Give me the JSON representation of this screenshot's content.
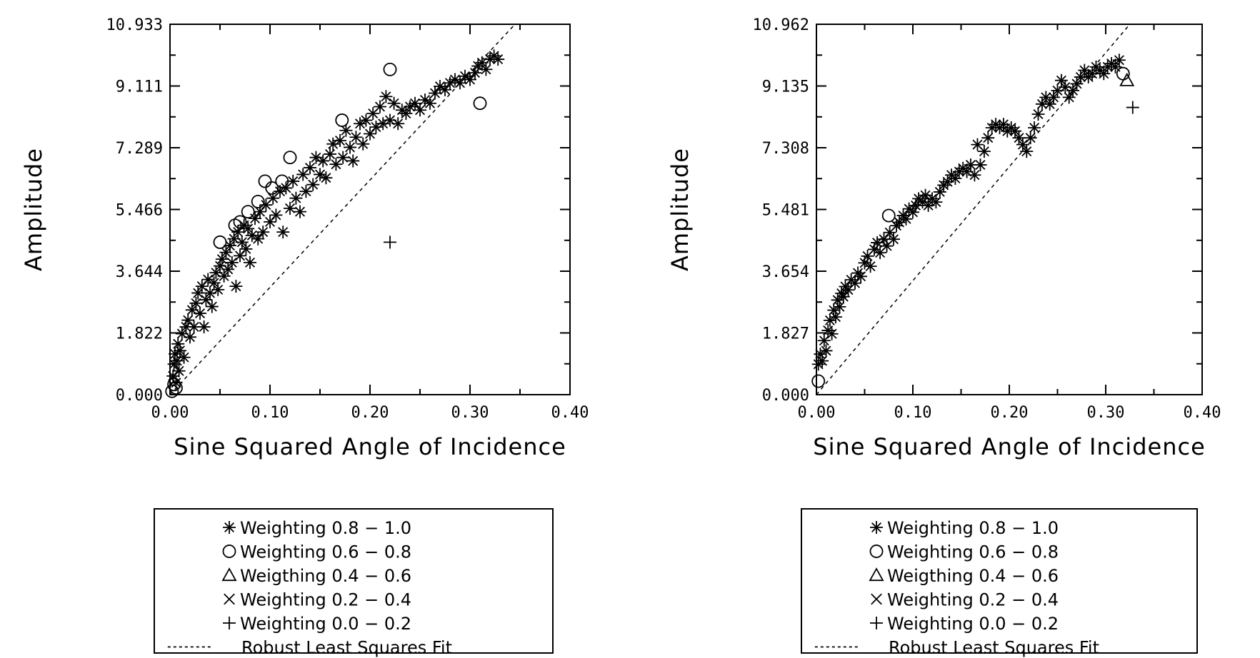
{
  "chart_data": [
    {
      "type": "scatter",
      "xlabel": "Sine Squared Angle of Incidence",
      "ylabel": "Amplitude",
      "xlim": [
        0.0,
        0.4
      ],
      "ylim": [
        0.0,
        10.933
      ],
      "x_ticks": [
        "0.00",
        "0.10",
        "0.20",
        "0.30",
        "0.40"
      ],
      "y_ticks": [
        "0.000",
        "1.822",
        "3.644",
        "5.466",
        "7.289",
        "9.111",
        "10.933"
      ],
      "fit_line": {
        "name": "Robust Least Squares Fit",
        "points": [
          [
            0.0,
            0.0
          ],
          [
            0.345,
            10.933
          ]
        ]
      },
      "series": [
        {
          "name": "Weighting 0.8 - 1.0",
          "marker": "asterisk",
          "points": [
            [
              0.003,
              0.55
            ],
            [
              0.004,
              0.9
            ],
            [
              0.005,
              1.2
            ],
            [
              0.006,
              0.35
            ],
            [
              0.007,
              1.0
            ],
            [
              0.008,
              1.5
            ],
            [
              0.009,
              0.7
            ],
            [
              0.01,
              1.3
            ],
            [
              0.012,
              1.8
            ],
            [
              0.014,
              1.1
            ],
            [
              0.016,
              2.0
            ],
            [
              0.018,
              2.2
            ],
            [
              0.02,
              1.7
            ],
            [
              0.022,
              2.5
            ],
            [
              0.024,
              2.0
            ],
            [
              0.026,
              2.7
            ],
            [
              0.028,
              3.0
            ],
            [
              0.03,
              2.4
            ],
            [
              0.032,
              3.2
            ],
            [
              0.034,
              2.0
            ],
            [
              0.036,
              2.8
            ],
            [
              0.038,
              3.4
            ],
            [
              0.04,
              3.0
            ],
            [
              0.042,
              2.6
            ],
            [
              0.044,
              3.3
            ],
            [
              0.046,
              3.6
            ],
            [
              0.048,
              3.1
            ],
            [
              0.05,
              3.8
            ],
            [
              0.052,
              4.0
            ],
            [
              0.054,
              3.5
            ],
            [
              0.056,
              4.2
            ],
            [
              0.058,
              3.7
            ],
            [
              0.06,
              4.4
            ],
            [
              0.062,
              3.9
            ],
            [
              0.064,
              4.6
            ],
            [
              0.066,
              3.2
            ],
            [
              0.068,
              4.8
            ],
            [
              0.07,
              4.1
            ],
            [
              0.072,
              4.5
            ],
            [
              0.074,
              5.0
            ],
            [
              0.076,
              4.3
            ],
            [
              0.078,
              4.9
            ],
            [
              0.08,
              3.9
            ],
            [
              0.082,
              4.7
            ],
            [
              0.085,
              5.2
            ],
            [
              0.088,
              4.6
            ],
            [
              0.09,
              5.4
            ],
            [
              0.093,
              4.8
            ],
            [
              0.096,
              5.6
            ],
            [
              0.1,
              5.1
            ],
            [
              0.103,
              5.8
            ],
            [
              0.106,
              5.3
            ],
            [
              0.11,
              6.0
            ],
            [
              0.113,
              4.8
            ],
            [
              0.116,
              6.1
            ],
            [
              0.12,
              5.5
            ],
            [
              0.123,
              6.3
            ],
            [
              0.126,
              5.8
            ],
            [
              0.13,
              5.4
            ],
            [
              0.133,
              6.5
            ],
            [
              0.136,
              6.0
            ],
            [
              0.14,
              6.7
            ],
            [
              0.143,
              6.2
            ],
            [
              0.146,
              7.0
            ],
            [
              0.15,
              6.5
            ],
            [
              0.153,
              6.9
            ],
            [
              0.156,
              6.4
            ],
            [
              0.16,
              7.1
            ],
            [
              0.163,
              7.4
            ],
            [
              0.166,
              6.8
            ],
            [
              0.17,
              7.5
            ],
            [
              0.173,
              7.0
            ],
            [
              0.176,
              7.8
            ],
            [
              0.18,
              7.3
            ],
            [
              0.183,
              6.9
            ],
            [
              0.186,
              7.6
            ],
            [
              0.19,
              8.0
            ],
            [
              0.193,
              7.4
            ],
            [
              0.196,
              8.1
            ],
            [
              0.2,
              7.7
            ],
            [
              0.203,
              8.3
            ],
            [
              0.206,
              7.9
            ],
            [
              0.21,
              8.5
            ],
            [
              0.213,
              8.0
            ],
            [
              0.216,
              8.8
            ],
            [
              0.22,
              8.1
            ],
            [
              0.224,
              8.6
            ],
            [
              0.228,
              8.0
            ],
            [
              0.232,
              8.4
            ],
            [
              0.236,
              8.3
            ],
            [
              0.24,
              8.5
            ],
            [
              0.245,
              8.6
            ],
            [
              0.25,
              8.4
            ],
            [
              0.255,
              8.7
            ],
            [
              0.26,
              8.6
            ],
            [
              0.265,
              8.9
            ],
            [
              0.27,
              9.1
            ],
            [
              0.275,
              9.0
            ],
            [
              0.28,
              9.2
            ],
            [
              0.285,
              9.3
            ],
            [
              0.29,
              9.2
            ],
            [
              0.295,
              9.4
            ],
            [
              0.3,
              9.3
            ],
            [
              0.305,
              9.5
            ],
            [
              0.308,
              9.7
            ],
            [
              0.312,
              9.8
            ],
            [
              0.316,
              9.6
            ],
            [
              0.32,
              9.9
            ],
            [
              0.324,
              10.0
            ],
            [
              0.328,
              9.9
            ]
          ]
        },
        {
          "name": "Weighting 0.6 - 0.8",
          "marker": "circle",
          "points": [
            [
              0.002,
              0.1
            ],
            [
              0.004,
              0.3
            ],
            [
              0.006,
              0.2
            ],
            [
              0.05,
              4.5
            ],
            [
              0.065,
              5.0
            ],
            [
              0.07,
              5.1
            ],
            [
              0.078,
              5.4
            ],
            [
              0.088,
              5.7
            ],
            [
              0.095,
              6.3
            ],
            [
              0.102,
              6.1
            ],
            [
              0.112,
              6.3
            ],
            [
              0.12,
              7.0
            ],
            [
              0.172,
              8.1
            ],
            [
              0.22,
              9.6
            ],
            [
              0.31,
              8.6
            ]
          ]
        },
        {
          "name": "Weighting 0.0 - 0.2",
          "marker": "plus",
          "points": [
            [
              0.22,
              4.5
            ]
          ]
        }
      ]
    },
    {
      "type": "scatter",
      "xlabel": "Sine Squared Angle of Incidence",
      "ylabel": "Amplitude",
      "xlim": [
        0.0,
        0.4
      ],
      "ylim": [
        0.0,
        10.962
      ],
      "x_ticks": [
        "0.00",
        "0.10",
        "0.20",
        "0.30",
        "0.40"
      ],
      "y_ticks": [
        "0.000",
        "1.827",
        "3.654",
        "5.481",
        "7.308",
        "9.135",
        "10.962"
      ],
      "fit_line": {
        "name": "Robust Least Squares Fit",
        "points": [
          [
            0.0,
            0.0
          ],
          [
            0.325,
            10.962
          ]
        ]
      },
      "series": [
        {
          "name": "Weighting 0.8 - 1.0",
          "marker": "asterisk",
          "points": [
            [
              0.002,
              0.9
            ],
            [
              0.004,
              1.2
            ],
            [
              0.006,
              1.0
            ],
            [
              0.008,
              1.6
            ],
            [
              0.01,
              1.3
            ],
            [
              0.012,
              1.9
            ],
            [
              0.014,
              2.2
            ],
            [
              0.016,
              1.8
            ],
            [
              0.018,
              2.5
            ],
            [
              0.02,
              2.3
            ],
            [
              0.022,
              2.8
            ],
            [
              0.024,
              2.6
            ],
            [
              0.026,
              3.0
            ],
            [
              0.028,
              2.9
            ],
            [
              0.03,
              3.2
            ],
            [
              0.033,
              3.1
            ],
            [
              0.036,
              3.4
            ],
            [
              0.04,
              3.3
            ],
            [
              0.043,
              3.6
            ],
            [
              0.046,
              3.5
            ],
            [
              0.05,
              3.9
            ],
            [
              0.053,
              4.1
            ],
            [
              0.056,
              3.8
            ],
            [
              0.06,
              4.3
            ],
            [
              0.063,
              4.5
            ],
            [
              0.066,
              4.2
            ],
            [
              0.07,
              4.6
            ],
            [
              0.073,
              4.4
            ],
            [
              0.076,
              4.8
            ],
            [
              0.08,
              4.6
            ],
            [
              0.083,
              5.0
            ],
            [
              0.086,
              5.1
            ],
            [
              0.09,
              5.3
            ],
            [
              0.093,
              5.2
            ],
            [
              0.096,
              5.5
            ],
            [
              0.1,
              5.4
            ],
            [
              0.103,
              5.6
            ],
            [
              0.106,
              5.8
            ],
            [
              0.11,
              5.7
            ],
            [
              0.113,
              5.9
            ],
            [
              0.116,
              5.6
            ],
            [
              0.12,
              5.8
            ],
            [
              0.124,
              5.7
            ],
            [
              0.128,
              6.0
            ],
            [
              0.132,
              6.2
            ],
            [
              0.136,
              6.3
            ],
            [
              0.14,
              6.5
            ],
            [
              0.144,
              6.4
            ],
            [
              0.148,
              6.6
            ],
            [
              0.152,
              6.7
            ],
            [
              0.156,
              6.6
            ],
            [
              0.16,
              6.8
            ],
            [
              0.164,
              6.5
            ],
            [
              0.167,
              7.4
            ],
            [
              0.17,
              6.8
            ],
            [
              0.174,
              7.2
            ],
            [
              0.178,
              7.6
            ],
            [
              0.182,
              7.9
            ],
            [
              0.186,
              8.0
            ],
            [
              0.19,
              7.9
            ],
            [
              0.194,
              8.0
            ],
            [
              0.198,
              7.8
            ],
            [
              0.202,
              7.9
            ],
            [
              0.206,
              7.8
            ],
            [
              0.21,
              7.6
            ],
            [
              0.214,
              7.4
            ],
            [
              0.218,
              7.2
            ],
            [
              0.222,
              7.6
            ],
            [
              0.226,
              7.9
            ],
            [
              0.23,
              8.3
            ],
            [
              0.234,
              8.6
            ],
            [
              0.238,
              8.8
            ],
            [
              0.242,
              8.6
            ],
            [
              0.246,
              8.8
            ],
            [
              0.25,
              9.0
            ],
            [
              0.254,
              9.3
            ],
            [
              0.258,
              9.1
            ],
            [
              0.262,
              8.8
            ],
            [
              0.266,
              9.0
            ],
            [
              0.27,
              9.2
            ],
            [
              0.274,
              9.4
            ],
            [
              0.278,
              9.6
            ],
            [
              0.282,
              9.4
            ],
            [
              0.286,
              9.5
            ],
            [
              0.29,
              9.7
            ],
            [
              0.294,
              9.6
            ],
            [
              0.298,
              9.5
            ],
            [
              0.302,
              9.7
            ],
            [
              0.306,
              9.8
            ],
            [
              0.31,
              9.7
            ],
            [
              0.314,
              9.9
            ]
          ]
        },
        {
          "name": "Weighting 0.6 - 0.8",
          "marker": "circle",
          "points": [
            [
              0.002,
              0.4
            ],
            [
              0.075,
              5.3
            ],
            [
              0.318,
              9.5
            ]
          ]
        },
        {
          "name": "Weigthing 0.4 - 0.6",
          "marker": "triangle",
          "points": [
            [
              0.322,
              9.3
            ]
          ]
        },
        {
          "name": "Weighting 0.0 - 0.2",
          "marker": "plus",
          "points": [
            [
              0.328,
              8.5
            ]
          ]
        }
      ]
    }
  ],
  "legends": [
    {
      "entries": [
        {
          "symbol": "asterisk",
          "label": "Weighting 0.8 − 1.0"
        },
        {
          "symbol": "circle",
          "label": "Weighting 0.6 − 0.8"
        },
        {
          "symbol": "triangle",
          "label": "Weigthing 0.4 − 0.6"
        },
        {
          "symbol": "cross",
          "label": "Weighting 0.2 − 0.4"
        },
        {
          "symbol": "plus",
          "label": "Weighting 0.0 − 0.2"
        },
        {
          "symbol": "dashed-line",
          "label": "Robust Least Squares Fit"
        }
      ]
    },
    {
      "entries": [
        {
          "symbol": "asterisk",
          "label": "Weighting 0.8 − 1.0"
        },
        {
          "symbol": "circle",
          "label": "Weighting 0.6 − 0.8"
        },
        {
          "symbol": "triangle",
          "label": "Weigthing 0.4 − 0.6"
        },
        {
          "symbol": "cross",
          "label": "Weighting 0.2 − 0.4"
        },
        {
          "symbol": "plus",
          "label": "Weighting 0.0 − 0.2"
        },
        {
          "symbol": "dashed-line",
          "label": "Robust Least Squares Fit"
        }
      ]
    }
  ]
}
